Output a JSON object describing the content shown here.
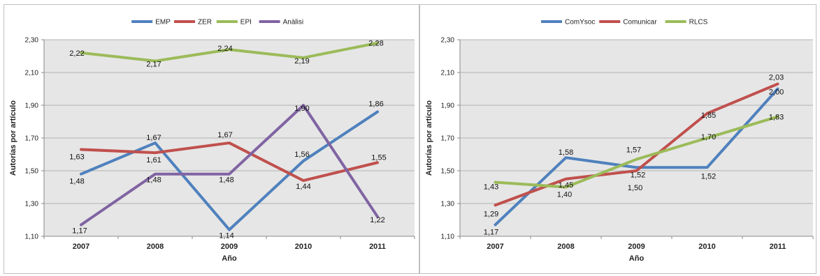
{
  "chart_data": [
    {
      "type": "line",
      "xlabel": "Año",
      "ylabel": "Autorías por artículo",
      "ylim": [
        1.1,
        2.3
      ],
      "yticks": [
        "1,10",
        "1,30",
        "1,50",
        "1,70",
        "1,90",
        "2,10",
        "2,30"
      ],
      "categories": [
        "2007",
        "2008",
        "2009",
        "2010",
        "2011"
      ],
      "grid": true,
      "legend": "top",
      "series": [
        {
          "name": "EMP",
          "color": "#4f81bd",
          "values": [
            1.48,
            1.67,
            1.14,
            1.56,
            1.86
          ],
          "labels": [
            "1,48",
            "1,67",
            "1,14",
            "1,56",
            "1,86"
          ]
        },
        {
          "name": "ZER",
          "color": "#c0504d",
          "values": [
            1.63,
            1.61,
            1.67,
            1.44,
            1.55
          ],
          "labels": [
            "1,63",
            "1,61",
            "1,67",
            "1,44",
            "1,55"
          ]
        },
        {
          "name": "EPI",
          "color": "#9bbb59",
          "values": [
            2.22,
            2.17,
            2.24,
            2.19,
            2.28
          ],
          "labels": [
            "2,22",
            "2,17",
            "2,24",
            "2,19",
            "2,28"
          ]
        },
        {
          "name": "Anàlisi",
          "color": "#8064a2",
          "values": [
            1.17,
            1.48,
            1.48,
            1.9,
            1.22
          ],
          "labels": [
            "1,17",
            "1,48",
            "1,48",
            "1,90",
            "1,22"
          ]
        }
      ]
    },
    {
      "type": "line",
      "xlabel": "Año",
      "ylabel": "Autorías por artículo",
      "ylim": [
        1.1,
        2.3
      ],
      "yticks": [
        "1,10",
        "1,30",
        "1,50",
        "1,70",
        "1,90",
        "2,10",
        "2,30"
      ],
      "categories": [
        "2007",
        "2008",
        "2009",
        "2010",
        "2011"
      ],
      "grid": true,
      "legend": "top",
      "series": [
        {
          "name": "ComYsoc",
          "color": "#4f81bd",
          "values": [
            1.17,
            1.58,
            1.52,
            1.52,
            2.0
          ],
          "labels": [
            "1,17",
            "1,58",
            "1,52",
            "1,52",
            "2,00"
          ]
        },
        {
          "name": "Comunicar",
          "color": "#c0504d",
          "values": [
            1.29,
            1.45,
            1.5,
            1.85,
            2.03
          ],
          "labels": [
            "1,29",
            "1,45",
            "1,50",
            "1,85",
            "2,03"
          ]
        },
        {
          "name": "RLCS",
          "color": "#9bbb59",
          "values": [
            1.43,
            1.4,
            1.57,
            1.7,
            1.83
          ],
          "labels": [
            "1,43",
            "1,40",
            "1,57",
            "1,70",
            "1,83"
          ]
        }
      ]
    }
  ]
}
